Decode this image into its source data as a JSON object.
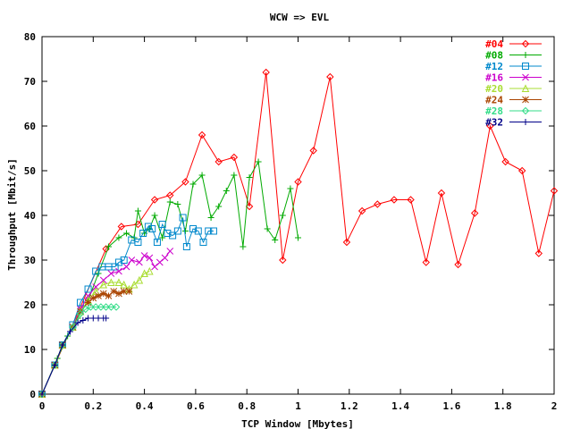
{
  "chart_data": {
    "type": "line",
    "title": "WCW => EVL",
    "xlabel": "TCP Window [Mbytes]",
    "ylabel": "Throughput [Mbit/s]",
    "xlim": [
      0,
      2
    ],
    "ylim": [
      0,
      80
    ],
    "x_ticks": [
      "0",
      "0.2",
      "0.4",
      "0.6",
      "0.8",
      "1",
      "1.2",
      "1.4",
      "1.6",
      "1.8",
      "2"
    ],
    "y_ticks": [
      "0",
      "10",
      "20",
      "30",
      "40",
      "50",
      "60",
      "70",
      "80"
    ],
    "legend_position": "top-right",
    "grid": false,
    "series": [
      {
        "name": "#04",
        "color": "#ff0000",
        "marker": "diamond",
        "x": [
          0,
          0.25,
          0.31,
          0.375,
          0.44,
          0.5,
          0.56,
          0.625,
          0.69,
          0.75,
          0.81,
          0.875,
          0.94,
          1.0,
          1.06,
          1.125,
          1.19,
          1.25,
          1.31,
          1.375,
          1.44,
          1.5,
          1.56,
          1.625,
          1.69,
          1.75,
          1.81,
          1.875,
          1.94,
          2.0
        ],
        "y": [
          0,
          32.5,
          37.5,
          38,
          43.5,
          44.5,
          47.5,
          58,
          52,
          53,
          42,
          72,
          30,
          47.5,
          54.5,
          71,
          34,
          41,
          42.5,
          43.5,
          43.5,
          29.5,
          45,
          29,
          40.5,
          60,
          52,
          50,
          31.5,
          45.5
        ]
      },
      {
        "name": "#08",
        "color": "#00aa00",
        "marker": "plus",
        "x": [
          0,
          0.06,
          0.1,
          0.14,
          0.18,
          0.22,
          0.26,
          0.3,
          0.33,
          0.36,
          0.375,
          0.4,
          0.42,
          0.44,
          0.47,
          0.5,
          0.53,
          0.56,
          0.59,
          0.625,
          0.66,
          0.69,
          0.72,
          0.75,
          0.785,
          0.81,
          0.845,
          0.88,
          0.91,
          0.94,
          0.97,
          1.0
        ],
        "y": [
          0,
          8,
          13,
          17,
          21,
          27,
          33,
          35,
          36,
          35,
          41,
          36,
          37,
          40,
          35,
          43,
          42.5,
          36.5,
          47,
          49,
          39.5,
          42,
          45.5,
          49,
          33,
          48.5,
          52,
          37,
          34.5,
          40,
          46,
          35
        ]
      },
      {
        "name": "#12",
        "color": "#0088cc",
        "marker": "square",
        "x": [
          0,
          0.05,
          0.08,
          0.12,
          0.15,
          0.18,
          0.21,
          0.235,
          0.26,
          0.285,
          0.3,
          0.32,
          0.35,
          0.375,
          0.395,
          0.415,
          0.43,
          0.45,
          0.47,
          0.49,
          0.51,
          0.53,
          0.55,
          0.565,
          0.59,
          0.61,
          0.63,
          0.65,
          0.67
        ],
        "y": [
          0,
          6.5,
          11,
          15.5,
          20.5,
          23.5,
          27.5,
          28.5,
          28.5,
          28.5,
          29.5,
          30,
          34.5,
          34,
          36,
          37.5,
          37,
          34,
          38,
          36,
          35.5,
          36.5,
          39.5,
          33,
          37,
          36.5,
          34,
          36.5,
          36.5
        ]
      },
      {
        "name": "#16",
        "color": "#cc00cc",
        "marker": "cross",
        "x": [
          0,
          0.05,
          0.08,
          0.12,
          0.15,
          0.18,
          0.21,
          0.24,
          0.27,
          0.3,
          0.33,
          0.35,
          0.38,
          0.4,
          0.42,
          0.44,
          0.46,
          0.48,
          0.5
        ],
        "y": [
          0,
          6.5,
          11,
          15,
          19,
          22,
          24,
          25.5,
          27,
          27.5,
          28.5,
          30,
          29.5,
          31,
          30.5,
          28.5,
          29.5,
          30.5,
          32
        ]
      },
      {
        "name": "#20",
        "color": "#aadd33",
        "marker": "triangle",
        "x": [
          0,
          0.05,
          0.08,
          0.12,
          0.15,
          0.18,
          0.21,
          0.24,
          0.27,
          0.3,
          0.32,
          0.34,
          0.36,
          0.38,
          0.4,
          0.42
        ],
        "y": [
          0,
          6.5,
          11,
          15,
          18.5,
          21,
          23,
          24.5,
          25,
          25,
          24.5,
          23.5,
          24.5,
          25.5,
          27,
          27.5
        ]
      },
      {
        "name": "#24",
        "color": "#aa4400",
        "marker": "star",
        "x": [
          0,
          0.05,
          0.08,
          0.12,
          0.15,
          0.18,
          0.2,
          0.22,
          0.24,
          0.26,
          0.28,
          0.3,
          0.32,
          0.34
        ],
        "y": [
          0,
          6.5,
          11,
          15,
          18.5,
          20.5,
          21.5,
          22,
          22.5,
          22,
          23,
          22.5,
          23,
          23
        ]
      },
      {
        "name": "#28",
        "color": "#33dd88",
        "marker": "diamond",
        "x": [
          0,
          0.05,
          0.08,
          0.12,
          0.15,
          0.17,
          0.19,
          0.21,
          0.23,
          0.25,
          0.27,
          0.29
        ],
        "y": [
          0,
          6.5,
          11,
          15,
          18,
          19,
          19.5,
          19.5,
          19.5,
          19.5,
          19.5,
          19.5
        ]
      },
      {
        "name": "#32",
        "color": "#000088",
        "marker": "plus",
        "x": [
          0,
          0.05,
          0.08,
          0.11,
          0.14,
          0.16,
          0.18,
          0.2,
          0.22,
          0.24,
          0.25
        ],
        "y": [
          0,
          6.5,
          11,
          14,
          16,
          16.5,
          17,
          17,
          17,
          17,
          17
        ]
      }
    ]
  }
}
